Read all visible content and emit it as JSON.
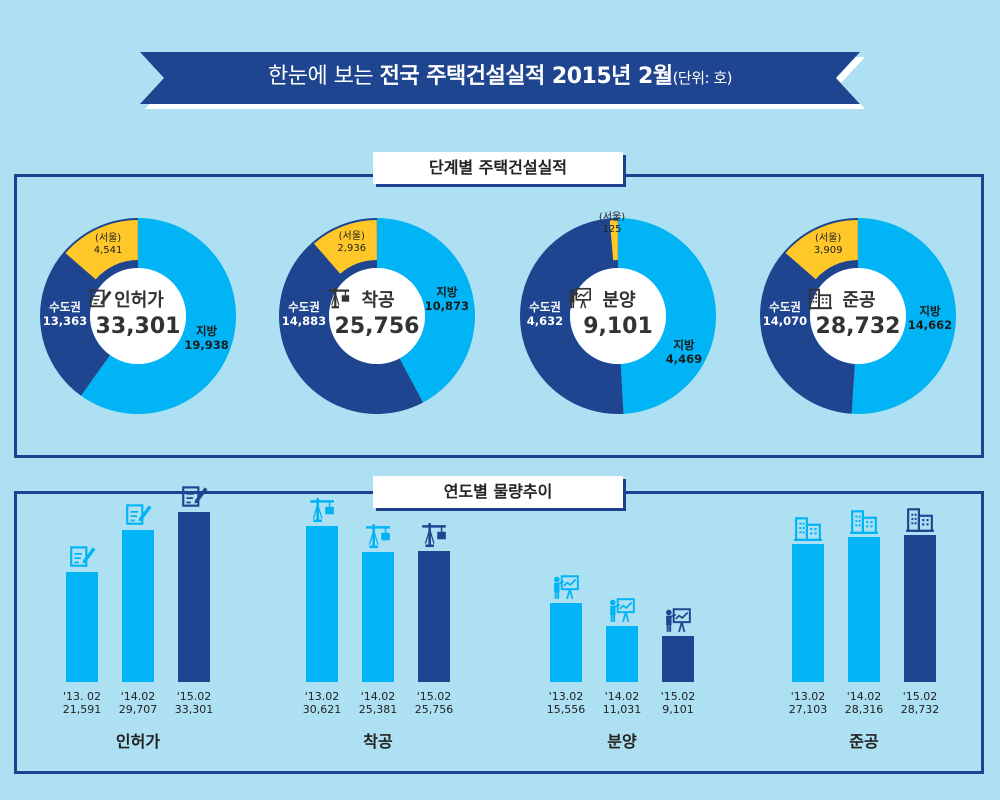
{
  "banner": {
    "prefix": "한눈에 보는 ",
    "bold": "전국 주택건설실적 2015년 2월",
    "unit": "(단위: 호)"
  },
  "sections": {
    "stage_title": "단계별 주택건설실적",
    "trend_title": "연도별 물량추이"
  },
  "colors": {
    "dark_blue": "#1f4590",
    "light_blue": "#00b4f5",
    "yellow": "#ffc828",
    "background": "#ade0f2"
  },
  "chart_data": [
    {
      "type": "pie",
      "donuts": [
        {
          "name": "인허가",
          "icon": "permit-icon",
          "total": "33,301",
          "segments": [
            {
              "label": "지방",
              "value": 19938,
              "value_text": "19,938"
            },
            {
              "label": "수도권",
              "value": 13363,
              "value_text": "13,363"
            },
            {
              "label": "(서울)",
              "value": 4541,
              "value_text": "4,541"
            }
          ]
        },
        {
          "name": "착공",
          "icon": "crane-icon",
          "total": "25,756",
          "segments": [
            {
              "label": "지방",
              "value": 10873,
              "value_text": "10,873"
            },
            {
              "label": "수도권",
              "value": 14883,
              "value_text": "14,883"
            },
            {
              "label": "(서울)",
              "value": 2936,
              "value_text": "2,936"
            }
          ]
        },
        {
          "name": "분양",
          "icon": "presenter-icon",
          "total": "9,101",
          "segments": [
            {
              "label": "지방",
              "value": 4469,
              "value_text": "4,469"
            },
            {
              "label": "수도권",
              "value": 4632,
              "value_text": "4,632"
            },
            {
              "label": "(서울)",
              "value": 125,
              "value_text": "125"
            }
          ]
        },
        {
          "name": "준공",
          "icon": "building-icon",
          "total": "28,732",
          "segments": [
            {
              "label": "지방",
              "value": 14662,
              "value_text": "14,662"
            },
            {
              "label": "수도권",
              "value": 14070,
              "value_text": "14,070"
            },
            {
              "label": "(서울)",
              "value": 3909,
              "value_text": "3,909"
            }
          ]
        }
      ]
    },
    {
      "type": "bar",
      "groups": [
        {
          "name": "인허가",
          "icon": "permit-icon",
          "categories": [
            "'13. 02",
            "'14.02",
            "'15.02"
          ],
          "values": [
            21591,
            29707,
            33301
          ],
          "value_texts": [
            "21,591",
            "29,707",
            "33,301"
          ]
        },
        {
          "name": "착공",
          "icon": "crane-icon",
          "categories": [
            "'13.02",
            "'14.02",
            "'15.02"
          ],
          "values": [
            30621,
            25381,
            25756
          ],
          "value_texts": [
            "30,621",
            "25,381",
            "25,756"
          ]
        },
        {
          "name": "분양",
          "icon": "presenter-icon",
          "categories": [
            "'13.02",
            "'14.02",
            "'15.02"
          ],
          "values": [
            15556,
            11031,
            9101
          ],
          "value_texts": [
            "15,556",
            "11,031",
            "9,101"
          ]
        },
        {
          "name": "준공",
          "icon": "building-icon",
          "categories": [
            "'13.02",
            "'14.02",
            "'15.02"
          ],
          "values": [
            27103,
            28316,
            28732
          ],
          "value_texts": [
            "27,103",
            "28,316",
            "28,732"
          ]
        }
      ]
    }
  ]
}
